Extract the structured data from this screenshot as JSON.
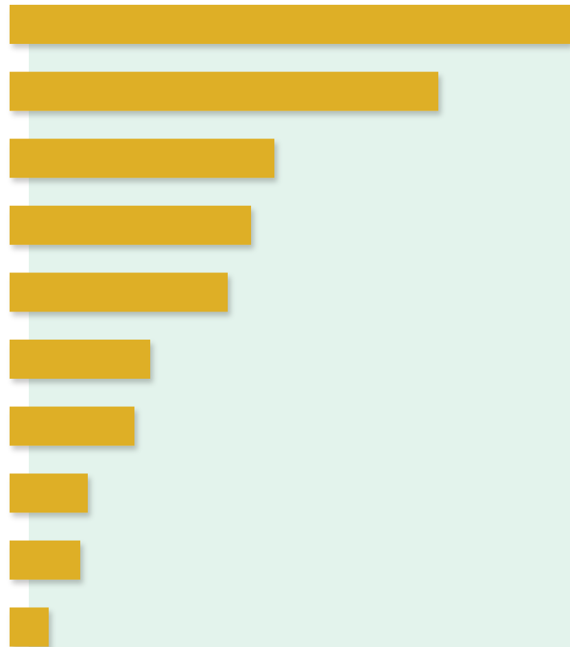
{
  "chart_data": {
    "type": "bar",
    "orientation": "horizontal",
    "categories": [
      "",
      "",
      "",
      "",
      "",
      "",
      "",
      "",
      "",
      ""
    ],
    "values": [
      817,
      625,
      386,
      352,
      318,
      205,
      182,
      114,
      103,
      57
    ],
    "title": "",
    "xlabel": "",
    "ylabel": "",
    "xlim": [
      0,
      817
    ],
    "grid": false,
    "legend": "none",
    "colors": {
      "bar": "#DEAF26",
      "plot_background": "#E3F3EC",
      "page_background": "#FFFFFF"
    }
  }
}
